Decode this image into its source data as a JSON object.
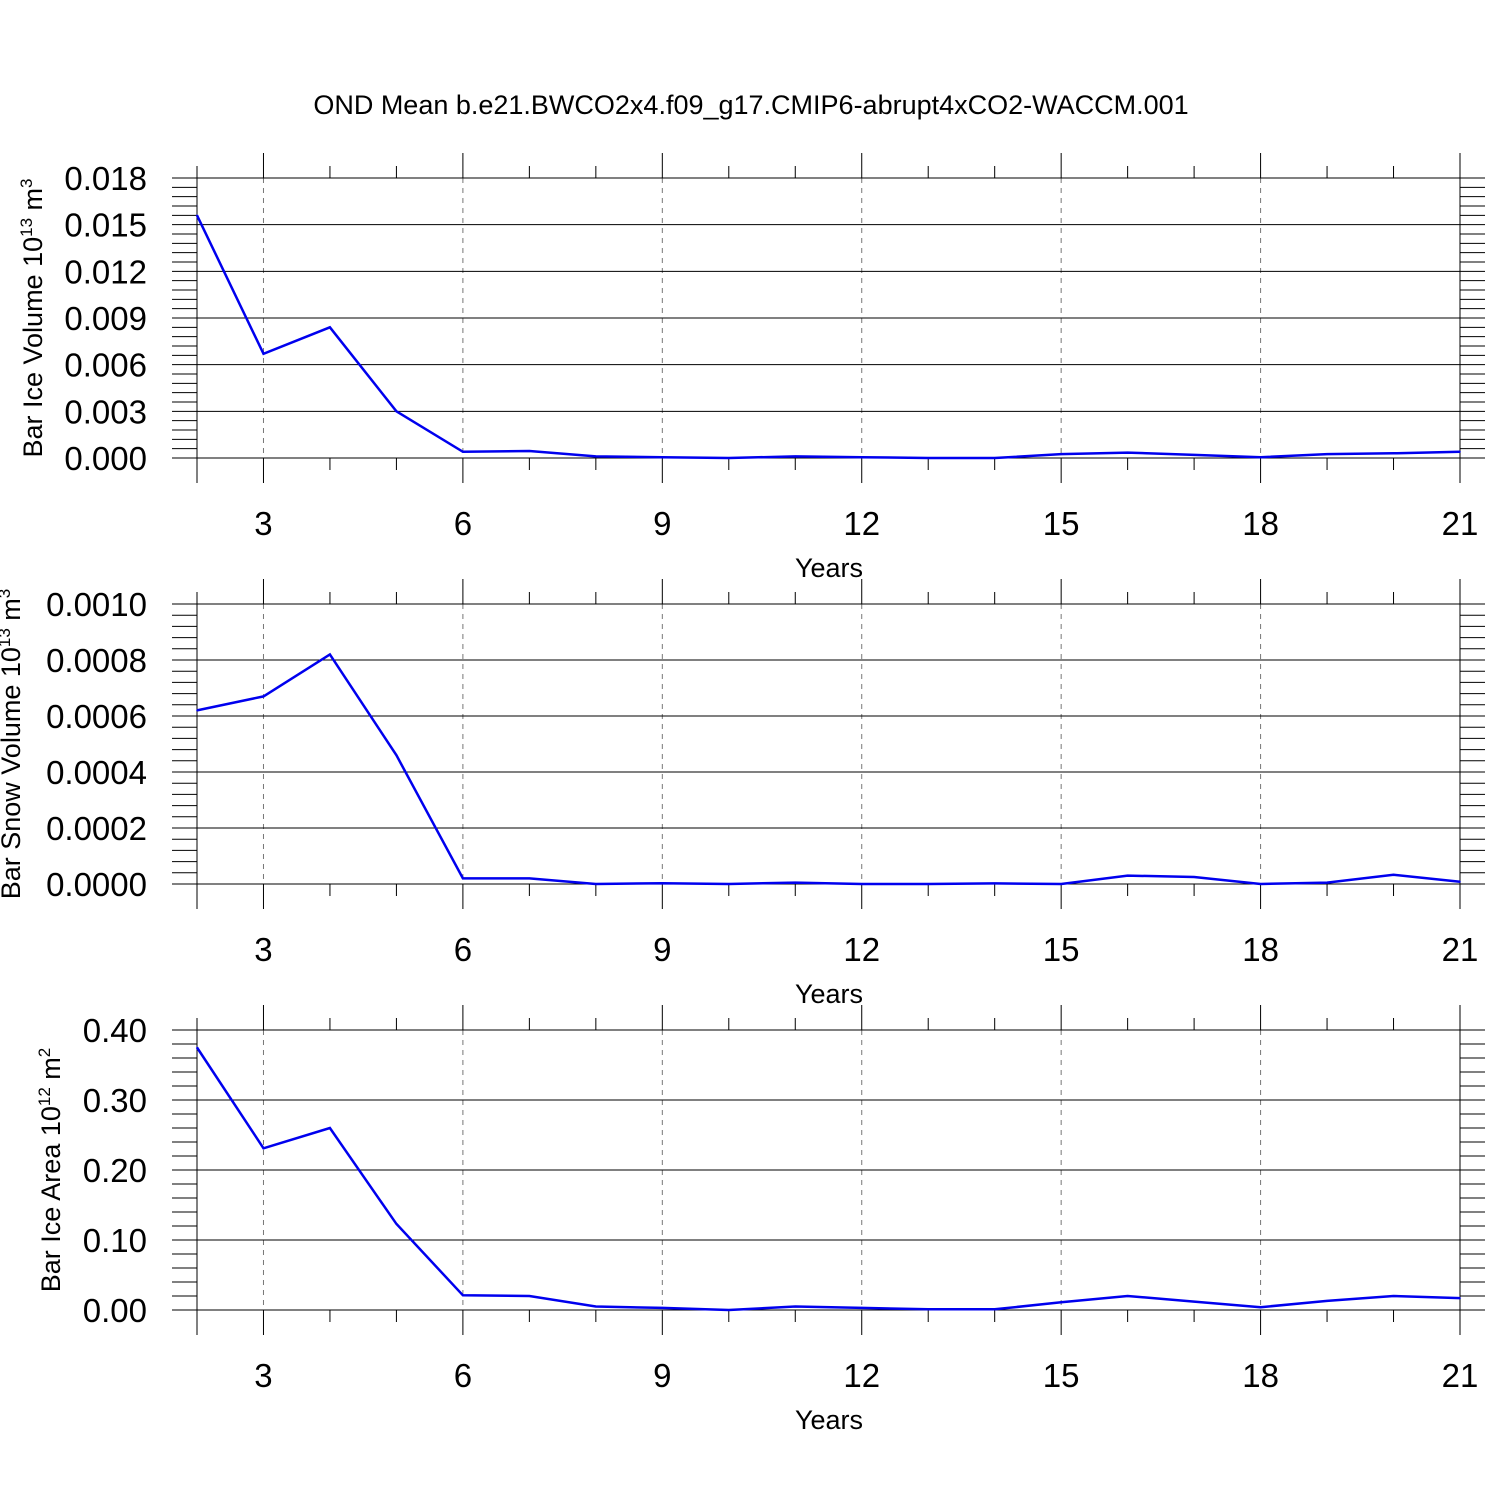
{
  "figure": {
    "title": "OND Mean b.e21.BWCO2x4.f09_g17.CMIP6-abrupt4xCO2-WACCM.001",
    "series_color": "#0000ee"
  },
  "chart_data": [
    {
      "type": "line",
      "xlabel": "Years",
      "ylabel": {
        "text": "Bar Ice Volume 10",
        "exp": "13",
        "unit": " m",
        "unit_exp": "3"
      },
      "xlim": [
        2,
        21
      ],
      "ylim": [
        0,
        0.018
      ],
      "xticks": [
        3,
        6,
        9,
        12,
        15,
        18,
        21
      ],
      "xtick_labels": [
        "3",
        "6",
        "9",
        "12",
        "15",
        "18",
        "21"
      ],
      "yticks": [
        0,
        0.003,
        0.006,
        0.009,
        0.012,
        0.015,
        0.018
      ],
      "ytick_labels": [
        "0.000",
        "0.003",
        "0.006",
        "0.009",
        "0.012",
        "0.015",
        "0.018"
      ],
      "grid_x": true,
      "x": [
        2,
        3,
        4,
        5,
        6,
        7,
        8,
        9,
        10,
        11,
        12,
        13,
        14,
        15,
        16,
        17,
        18,
        19,
        20,
        21
      ],
      "series": [
        {
          "values": [
            0.0156,
            0.0067,
            0.0084,
            0.003,
            0.0004,
            0.00045,
            0.0001,
            5e-05,
            0.0,
            0.0001,
            5e-05,
            0.0,
            0.0,
            0.00025,
            0.00035,
            0.0002,
            5e-05,
            0.00025,
            0.0003,
            0.0004
          ]
        }
      ]
    },
    {
      "type": "line",
      "xlabel": "Years",
      "ylabel": {
        "text": "Bar Snow Volume 10",
        "exp": "13",
        "unit": " m",
        "unit_exp": "3"
      },
      "xlim": [
        2,
        21
      ],
      "ylim": [
        0,
        0.001
      ],
      "xticks": [
        3,
        6,
        9,
        12,
        15,
        18,
        21
      ],
      "xtick_labels": [
        "3",
        "6",
        "9",
        "12",
        "15",
        "18",
        "21"
      ],
      "yticks": [
        0,
        0.0002,
        0.0004,
        0.0006,
        0.0008,
        0.001
      ],
      "ytick_labels": [
        "0.0000",
        "0.0002",
        "0.0004",
        "0.0006",
        "0.0008",
        "0.0010"
      ],
      "grid_x": true,
      "x": [
        2,
        3,
        4,
        5,
        6,
        7,
        8,
        9,
        10,
        11,
        12,
        13,
        14,
        15,
        16,
        17,
        18,
        19,
        20,
        21
      ],
      "series": [
        {
          "values": [
            0.00062,
            0.00067,
            0.00082,
            0.00046,
            2e-05,
            2e-05,
            0.0,
            3e-06,
            0.0,
            5e-06,
            0.0,
            0.0,
            2e-06,
            0.0,
            3e-05,
            2.5e-05,
            0.0,
            5e-06,
            3.3e-05,
            8e-06
          ]
        }
      ]
    },
    {
      "type": "line",
      "xlabel": "Years",
      "ylabel": {
        "text": "Bar Ice Area 10",
        "exp": "12",
        "unit": " m",
        "unit_exp": "2"
      },
      "xlim": [
        2,
        21
      ],
      "ylim": [
        0,
        0.4
      ],
      "xticks": [
        3,
        6,
        9,
        12,
        15,
        18,
        21
      ],
      "xtick_labels": [
        "3",
        "6",
        "9",
        "12",
        "15",
        "18",
        "21"
      ],
      "yticks": [
        0,
        0.1,
        0.2,
        0.3,
        0.4
      ],
      "ytick_labels": [
        "0.00",
        "0.10",
        "0.20",
        "0.30",
        "0.40"
      ],
      "grid_x": true,
      "x": [
        2,
        3,
        4,
        5,
        6,
        7,
        8,
        9,
        10,
        11,
        12,
        13,
        14,
        15,
        16,
        17,
        18,
        19,
        20,
        21
      ],
      "series": [
        {
          "values": [
            0.375,
            0.231,
            0.26,
            0.123,
            0.021,
            0.02,
            0.005,
            0.003,
            0.0,
            0.005,
            0.003,
            0.001,
            0.001,
            0.011,
            0.02,
            0.012,
            0.004,
            0.013,
            0.02,
            0.017
          ]
        }
      ]
    }
  ]
}
